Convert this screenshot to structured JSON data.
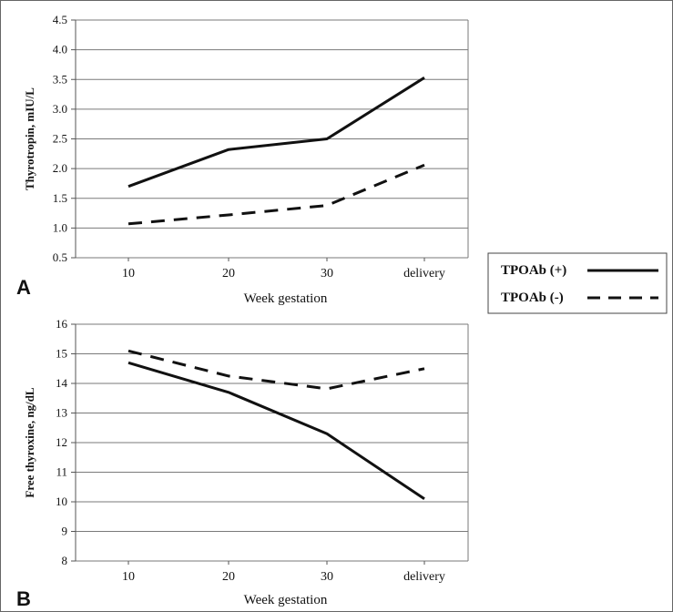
{
  "colors": {
    "line": "#111111",
    "grid": "#7a7a7a",
    "axis": "#555555",
    "frame": "#666666"
  },
  "legend": {
    "entries": [
      {
        "label": "TPOAb (+)",
        "style": "solid"
      },
      {
        "label": "TPOAb (-)",
        "style": "dashed"
      }
    ]
  },
  "chart_data": [
    {
      "type": "line",
      "panel_label": "A",
      "categories": [
        "10",
        "20",
        "30",
        "delivery"
      ],
      "xlabel": "Week gestation",
      "ylabel": "Thyrotropin, mIU/L",
      "ylim": [
        0.5,
        4.5
      ],
      "yticks": [
        "0.5",
        "1.0",
        "1.5",
        "2.0",
        "2.5",
        "3.0",
        "3.5",
        "4.0",
        "4.5"
      ],
      "grid": true,
      "legend_position": "right",
      "series": [
        {
          "name": "TPOAb (+)",
          "style": "solid",
          "values": [
            1.7,
            2.32,
            2.5,
            3.53
          ]
        },
        {
          "name": "TPOAb (-)",
          "style": "dashed",
          "values": [
            1.07,
            1.22,
            1.38,
            2.06
          ]
        }
      ]
    },
    {
      "type": "line",
      "panel_label": "B",
      "categories": [
        "10",
        "20",
        "30",
        "delivery"
      ],
      "xlabel": "Week gestation",
      "ylabel": "Free thyroxine, ng/dL",
      "ylim": [
        8,
        16
      ],
      "yticks": [
        "8",
        "9",
        "10",
        "11",
        "12",
        "13",
        "14",
        "15",
        "16"
      ],
      "grid": true,
      "legend_position": "right",
      "series": [
        {
          "name": "TPOAb (+)",
          "style": "solid",
          "values": [
            14.7,
            13.7,
            12.3,
            10.1
          ]
        },
        {
          "name": "TPOAb (-)",
          "style": "dashed",
          "values": [
            15.1,
            14.25,
            13.82,
            14.5
          ]
        }
      ]
    }
  ]
}
